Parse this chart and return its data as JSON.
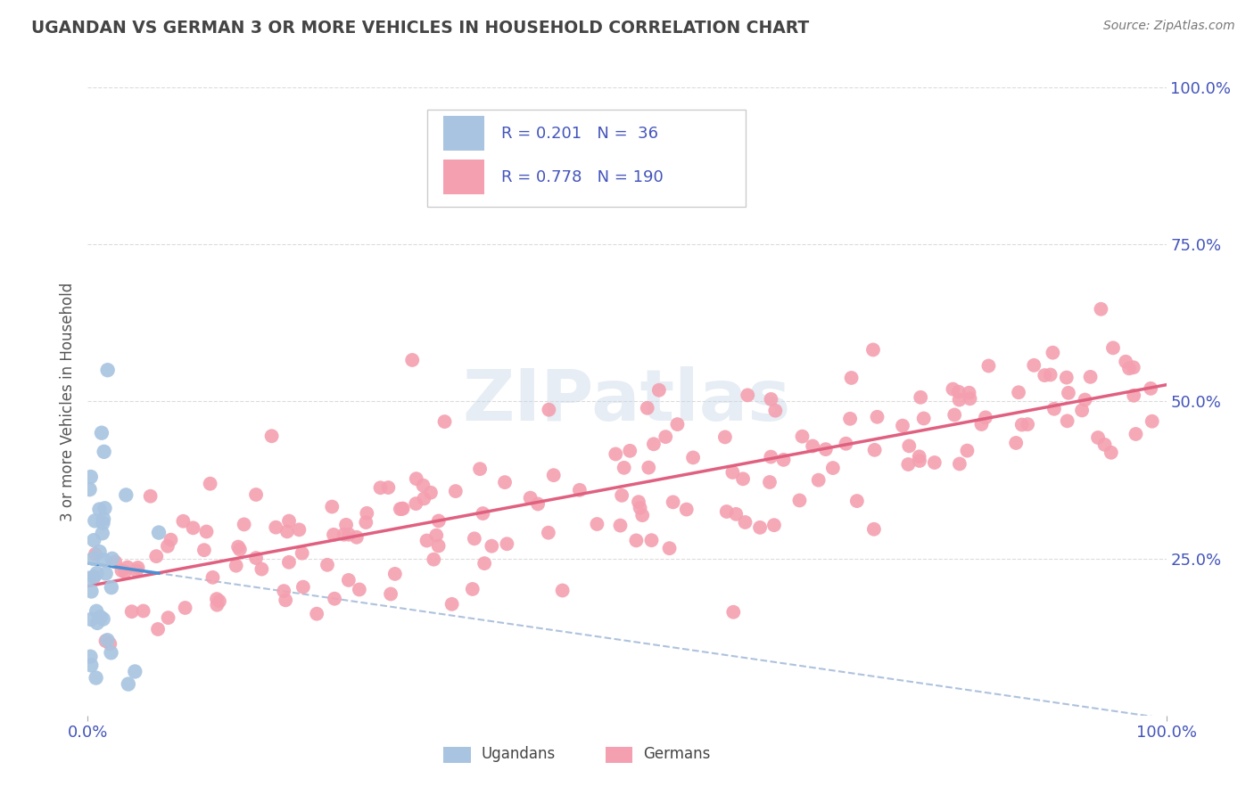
{
  "title": "UGANDAN VS GERMAN 3 OR MORE VEHICLES IN HOUSEHOLD CORRELATION CHART",
  "source": "Source: ZipAtlas.com",
  "ylabel": "3 or more Vehicles in Household",
  "background_color": "#ffffff",
  "ugandan_color": "#a8c4e0",
  "ugandan_line_color": "#4a8fd4",
  "german_color": "#f4a0b0",
  "german_line_color": "#e06080",
  "dashed_line_color": "#a0b8d8",
  "ugandan_R": 0.201,
  "ugandan_N": 36,
  "german_R": 0.778,
  "german_N": 190,
  "legend_label_ugandan": "Ugandans",
  "legend_label_german": "Germans",
  "watermark": "ZIPatlas",
  "tick_color": "#4455bb",
  "grid_color": "#cccccc",
  "title_color": "#444444",
  "source_color": "#777777",
  "ylabel_color": "#555555",
  "xaxis_label_0": "0.0%",
  "xaxis_label_100": "100.0%",
  "yaxis_labels": [
    "25.0%",
    "50.0%",
    "75.0%",
    "100.0%"
  ],
  "yaxis_vals": [
    25,
    50,
    75,
    100
  ],
  "xlim": [
    0,
    100
  ],
  "ylim": [
    0,
    100
  ],
  "ugandan_seed": 77,
  "german_seed": 42
}
